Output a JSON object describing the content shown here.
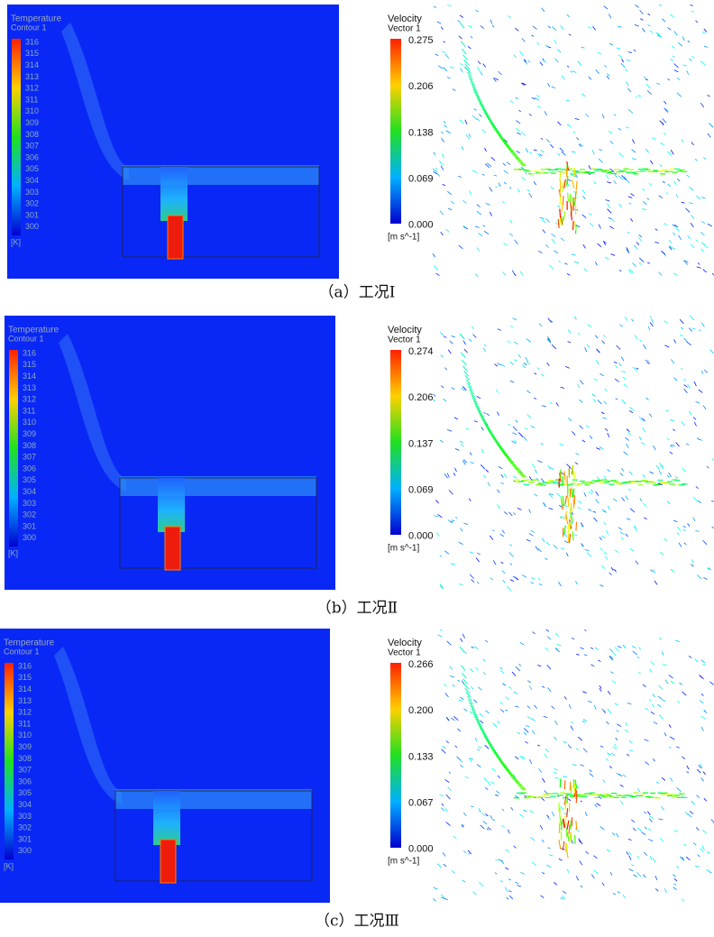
{
  "panels": [
    {
      "temperature_legend": {
        "title": "Temperature",
        "subtitle": "Contour 1",
        "ticks": [
          "316",
          "315",
          "314",
          "313",
          "312",
          "311",
          "310",
          "309",
          "308",
          "307",
          "306",
          "305",
          "304",
          "303",
          "302",
          "301",
          "300"
        ],
        "unit": "[K]"
      },
      "velocity_legend": {
        "title": "Velocity",
        "subtitle": "Vector 1",
        "ticks": [
          "0.275",
          "0.206",
          "0.138",
          "0.069",
          "0.000"
        ],
        "unit": "[m s^-1]"
      },
      "caption": "（a）工况Ⅰ"
    },
    {
      "temperature_legend": {
        "title": "Temperature",
        "subtitle": "Contour 1",
        "ticks": [
          "316",
          "315",
          "314",
          "313",
          "312",
          "311",
          "310",
          "309",
          "308",
          "307",
          "306",
          "305",
          "304",
          "303",
          "302",
          "301",
          "300"
        ],
        "unit": "[K]"
      },
      "velocity_legend": {
        "title": "Velocity",
        "subtitle": "Vector 1",
        "ticks": [
          "0.274",
          "0.206",
          "0.137",
          "0.069",
          "0.000"
        ],
        "unit": "[m s^-1]"
      },
      "caption": "（b）工况Ⅱ"
    },
    {
      "temperature_legend": {
        "title": "Temperature",
        "subtitle": "Contour 1",
        "ticks": [
          "316",
          "315",
          "314",
          "313",
          "312",
          "311",
          "310",
          "309",
          "308",
          "307",
          "306",
          "305",
          "304",
          "303",
          "302",
          "301",
          "300"
        ],
        "unit": "[K]"
      },
      "velocity_legend": {
        "title": "Velocity",
        "subtitle": "Vector 1",
        "ticks": [
          "0.266",
          "0.200",
          "0.133",
          "0.067",
          "0.000"
        ],
        "unit": "[m s^-1]"
      },
      "caption": "（c）工况Ⅲ"
    }
  ]
}
